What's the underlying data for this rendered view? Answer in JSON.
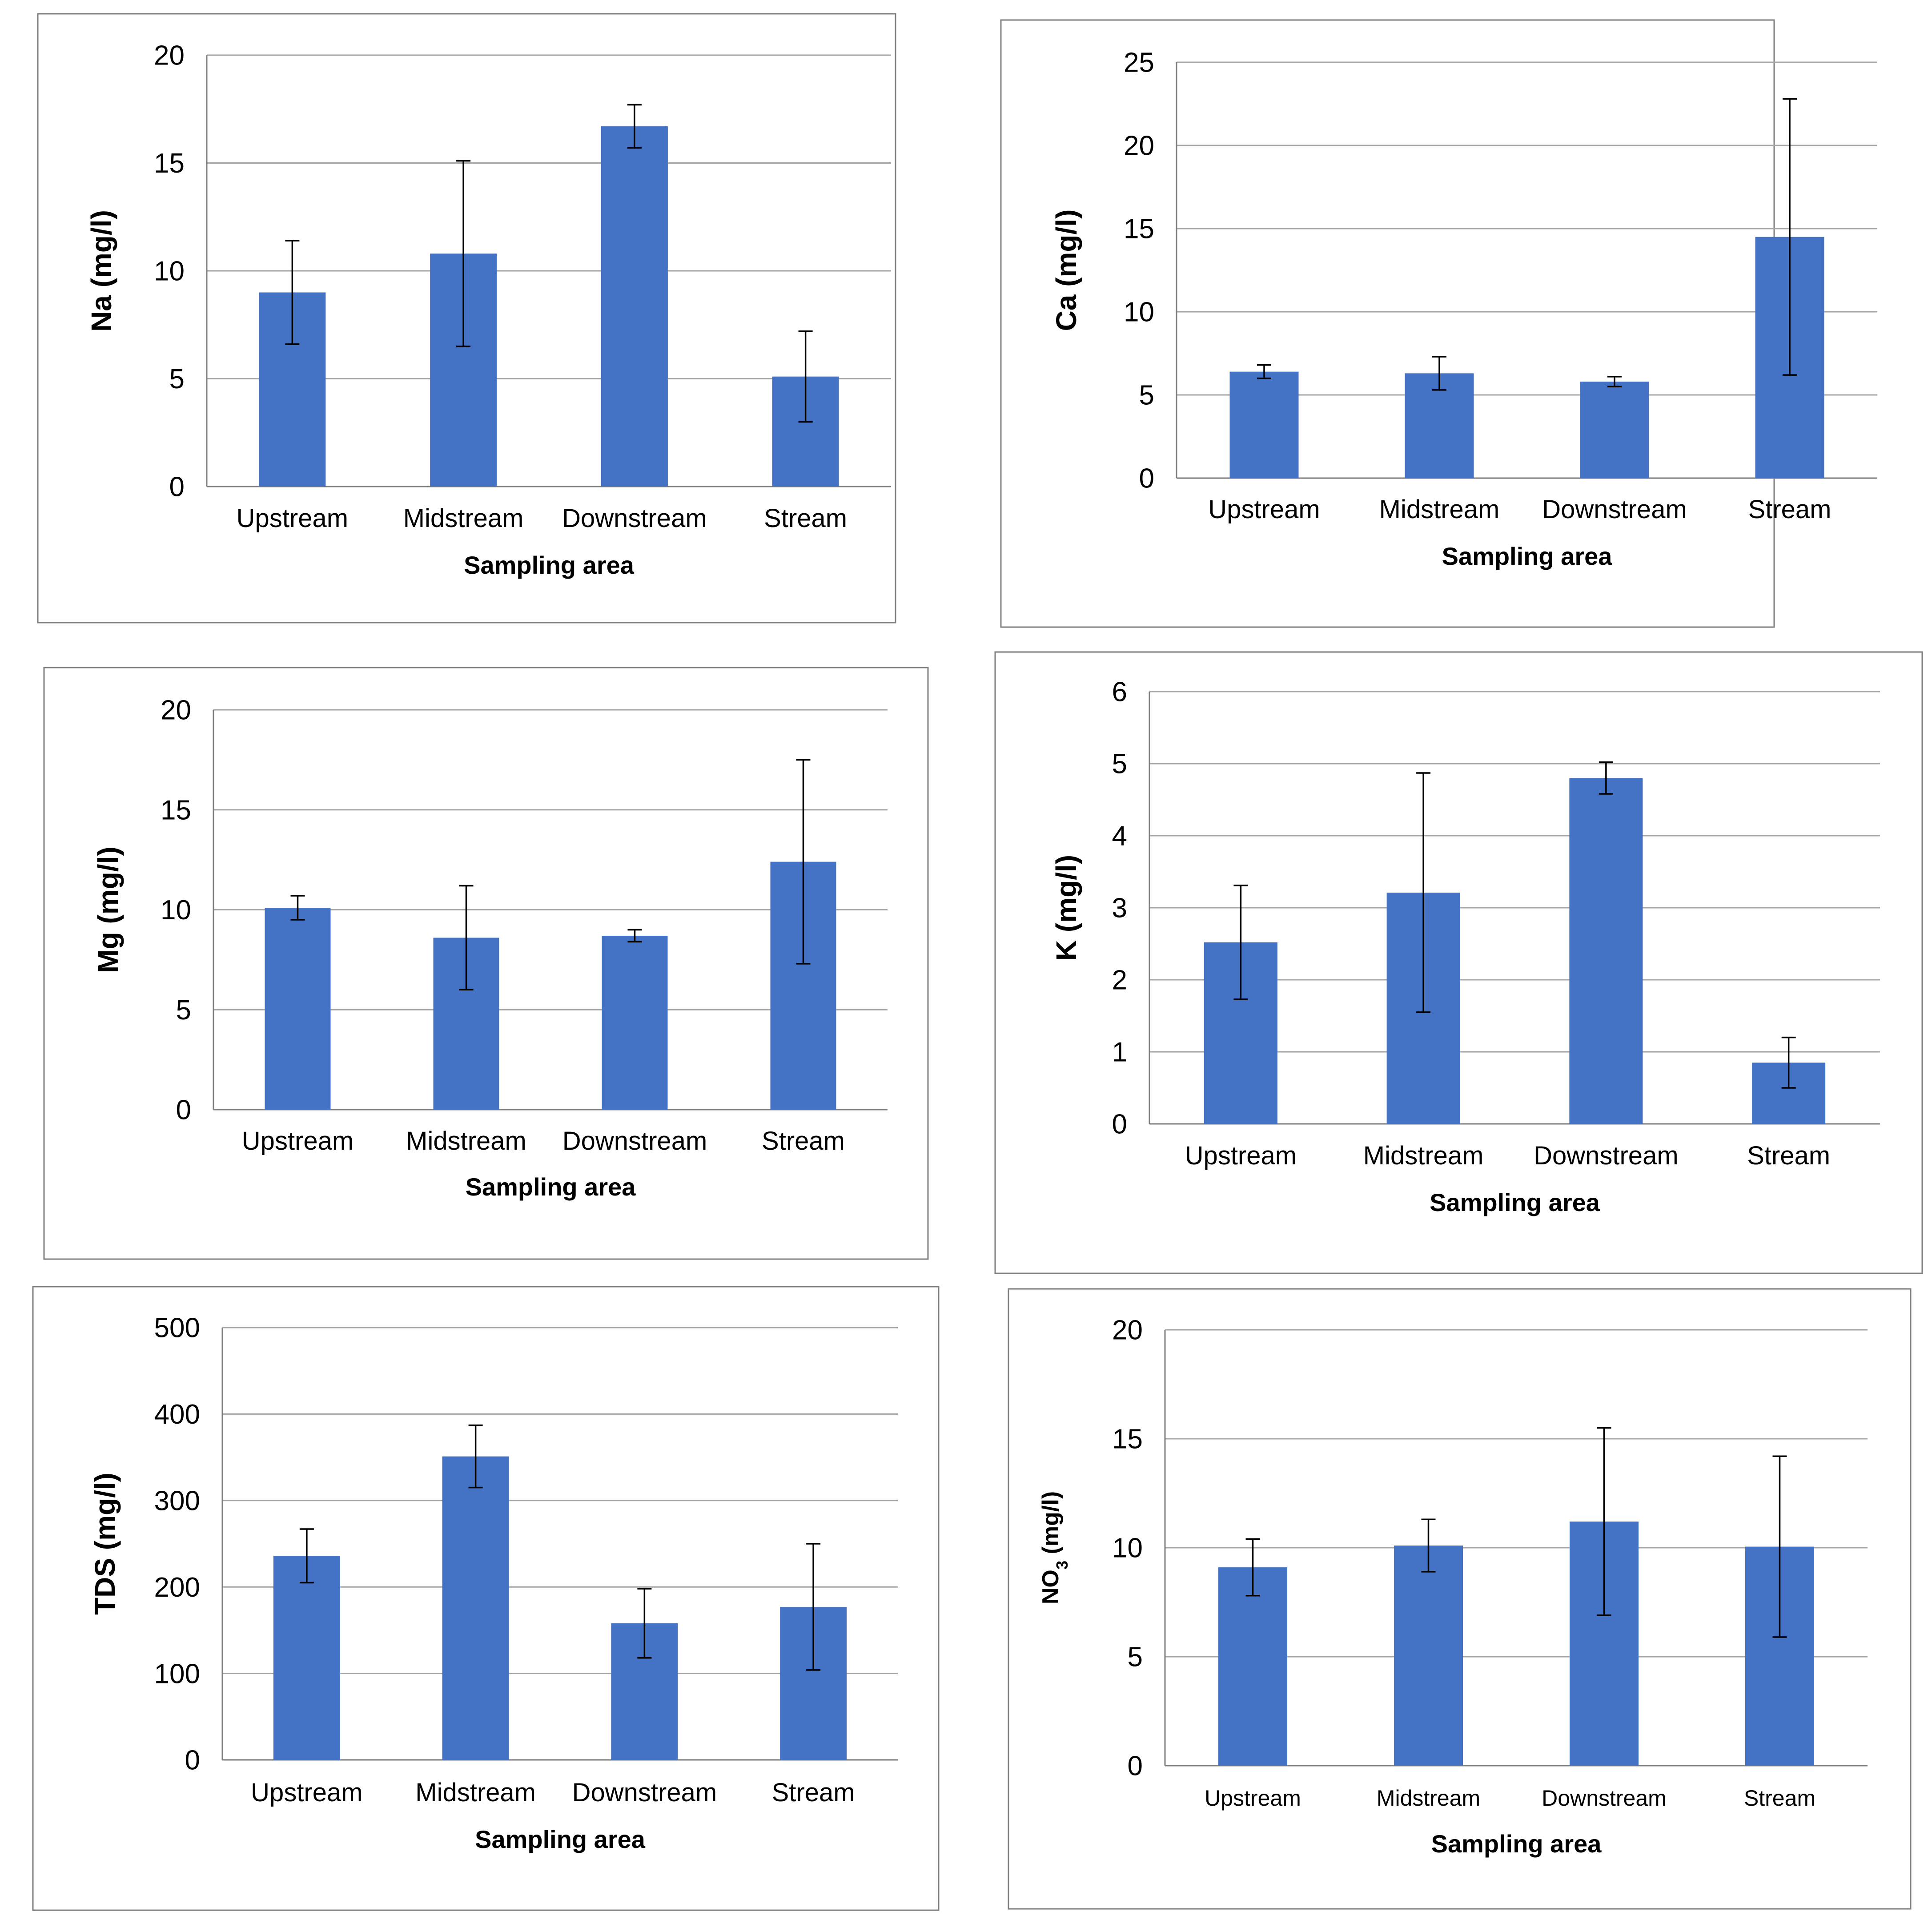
{
  "colors": {
    "bar": "#4472c4",
    "error_bar": "#000000",
    "gridline": "#a6a6a6",
    "frame": "#7f7f7f"
  },
  "chart_data": [
    {
      "type": "bar",
      "ylabel": "Na (mg/l)",
      "xlabel": "Sampling area",
      "categories": [
        "Upstream",
        "Midstream",
        "Downstream",
        "Stream"
      ],
      "values": [
        9.0,
        10.8,
        16.7,
        5.1
      ],
      "errors": [
        2.4,
        4.3,
        1.0,
        2.1
      ],
      "ylim": [
        0,
        20
      ],
      "yticks": [
        0,
        5,
        10,
        15,
        20
      ],
      "grid": true
    },
    {
      "type": "bar",
      "ylabel": "Ca (mg/l)",
      "xlabel": "Sampling area",
      "categories": [
        "Upstream",
        "Midstream",
        "Downstream",
        "Stream"
      ],
      "values": [
        6.4,
        6.3,
        5.8,
        14.5
      ],
      "errors": [
        0.4,
        1.0,
        0.3,
        8.3
      ],
      "ylim": [
        0,
        25
      ],
      "yticks": [
        0,
        5,
        10,
        15,
        20,
        25
      ],
      "grid": true
    },
    {
      "type": "bar",
      "ylabel": "Mg (mg/l)",
      "xlabel": "Sampling area",
      "categories": [
        "Upstream",
        "Midstream",
        "Downstream",
        "Stream"
      ],
      "values": [
        10.1,
        8.6,
        8.7,
        12.4
      ],
      "errors": [
        0.6,
        2.6,
        0.3,
        5.1
      ],
      "ylim": [
        0,
        20
      ],
      "yticks": [
        0,
        5,
        10,
        15,
        20
      ],
      "grid": true
    },
    {
      "type": "bar",
      "ylabel": "K (mg/l)",
      "xlabel": "Sampling area",
      "categories": [
        "Upstream",
        "Midstream",
        "Downstream",
        "Stream"
      ],
      "values": [
        2.52,
        3.21,
        4.8,
        0.85
      ],
      "errors": [
        0.79,
        1.66,
        0.22,
        0.35
      ],
      "ylim": [
        0,
        6
      ],
      "yticks": [
        0,
        1,
        2,
        3,
        4,
        5,
        6
      ],
      "grid": true
    },
    {
      "type": "bar",
      "ylabel": "TDS (mg/l)",
      "xlabel": "Sampling area",
      "categories": [
        "Upstream",
        "Midstream",
        "Downstream",
        "Stream"
      ],
      "values": [
        236,
        351,
        158,
        177
      ],
      "errors": [
        31,
        36,
        40,
        73
      ],
      "ylim": [
        0,
        500
      ],
      "yticks": [
        0,
        100,
        200,
        300,
        400,
        500
      ],
      "grid": true
    },
    {
      "type": "bar",
      "ylabel": "NO",
      "ylabel_subscript": "3",
      "ylabel_unit": " (mg/l)",
      "xlabel": "Sampling area",
      "categories": [
        "Upstream",
        "Midstream",
        "Downstream",
        "Stream"
      ],
      "values": [
        9.1,
        10.1,
        11.2,
        10.05
      ],
      "errors": [
        1.3,
        1.2,
        4.3,
        4.15
      ],
      "ylim": [
        0,
        20
      ],
      "yticks": [
        0,
        5,
        10,
        15,
        20
      ],
      "grid": true
    }
  ]
}
